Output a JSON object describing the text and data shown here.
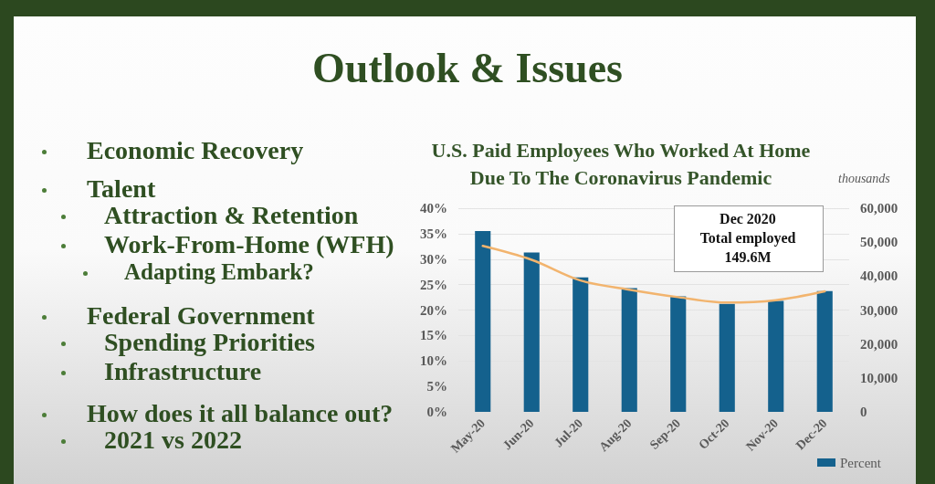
{
  "chart_data": {
    "type": "bar",
    "title": "Outlook & Issues",
    "subtitle": "U.S. Paid Employees Who Worked At Home Due To The Coronavirus Pandemic",
    "y2label": "thousands",
    "categories": [
      "May-20",
      "Jun-20",
      "Jul-20",
      "Aug-20",
      "Sep-20",
      "Oct-20",
      "Nov-20",
      "Dec-20"
    ],
    "series": [
      {
        "name": "Percent",
        "color": "#14618d",
        "values": [
          35.5,
          31.3,
          26.4,
          24.3,
          22.7,
          21.2,
          21.8,
          23.7
        ]
      },
      {
        "type": "line",
        "axis": "y2",
        "color": "#f2b46e",
        "values": [
          48900,
          44800,
          38700,
          36000,
          33800,
          32200,
          32900,
          35500
        ]
      }
    ],
    "ylim": [
      0,
      40
    ],
    "yticks": [
      {
        "value": 0,
        "label": "0%"
      },
      {
        "value": 5,
        "label": "5%"
      },
      {
        "value": 10,
        "label": "10%"
      },
      {
        "value": 15,
        "label": "15%"
      },
      {
        "value": 20,
        "label": "20%"
      },
      {
        "value": 25,
        "label": "25%"
      },
      {
        "value": 30,
        "label": "30%"
      },
      {
        "value": 35,
        "label": "35%"
      },
      {
        "value": 40,
        "label": "40%"
      }
    ],
    "y2lim": [
      0,
      60000
    ],
    "y2ticks": [
      0,
      {
        "value": 10000,
        "label": "10,000"
      },
      {
        "value": 20000,
        "label": "20,000"
      },
      {
        "value": 30000,
        "label": "30,000"
      },
      {
        "value": 40000,
        "label": "40,000"
      },
      {
        "value": 50000,
        "label": "50,000"
      },
      {
        "value": 60000,
        "label": "60,000"
      }
    ],
    "grid": "y",
    "legend": "bottom right",
    "marker": "none",
    "annotations": [
      "Economic Recovery",
      "Talent",
      "Attraction & Retention",
      "Work-From-Home (WFH)",
      "Adapting Embark?",
      "Federal Government",
      "Spending Priorities",
      "Infrastructure",
      "How does it all balance out?",
      "2021 vs 2022",
      "Dec 2020\nTotal employed\n149.6M"
    ]
  }
}
